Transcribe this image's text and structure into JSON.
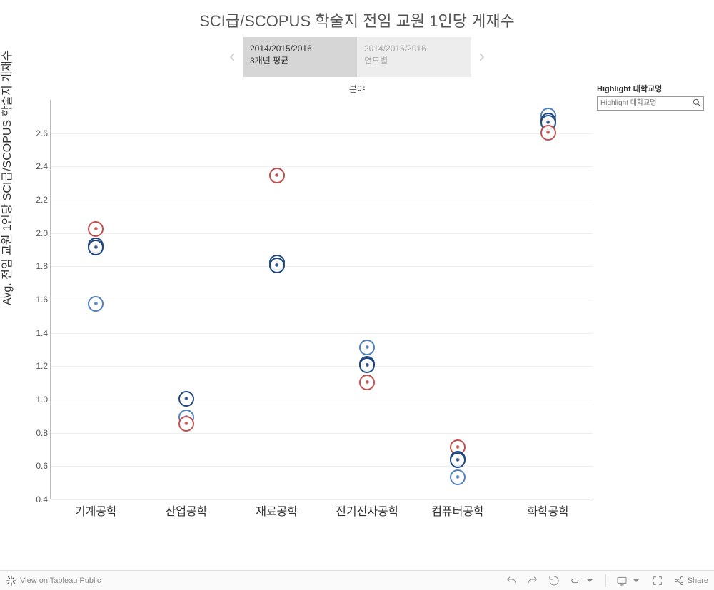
{
  "title": "SCI급/SCOPUS  학술지 전임 교원 1인당 게재수",
  "tabs": {
    "prev_icon": "chevron-left",
    "next_icon": "chevron-right",
    "items": [
      {
        "line1": "2014/2015/2016",
        "line2": "3개년 평균",
        "active": true
      },
      {
        "line1": "2014/2015/2016",
        "line2": "연도별",
        "active": false
      }
    ]
  },
  "highlight": {
    "label": "Highlight 대학교명",
    "placeholder": "Highlight 대학교명"
  },
  "chart": {
    "type": "scatter-categorical",
    "category_axis_label": "분야",
    "y_axis_label": "Avg. 전임 교원 1인당 SCI급/SCOPUS 학술지 게재수",
    "ylim": [
      0.4,
      2.8
    ],
    "yticks": [
      0.4,
      0.6,
      0.8,
      1.0,
      1.2,
      1.4,
      1.6,
      1.8,
      2.0,
      2.2,
      2.4,
      2.6
    ],
    "categories": [
      "기계공학",
      "산업공학",
      "재료공학",
      "전기전자공학",
      "컴퓨터공학",
      "화학공학"
    ],
    "marker_style": {
      "size": 22,
      "border_width": 2,
      "shape": "circle"
    },
    "series_colors": {
      "A": "#c0504d",
      "B": "#1f497d",
      "C": "#4f81bd"
    },
    "points": [
      {
        "category": 0,
        "value": 2.02,
        "series": "A"
      },
      {
        "category": 0,
        "value": 1.92,
        "series": "B"
      },
      {
        "category": 0,
        "value": 1.91,
        "series": "B"
      },
      {
        "category": 0,
        "value": 1.57,
        "series": "C"
      },
      {
        "category": 1,
        "value": 1.0,
        "series": "B"
      },
      {
        "category": 1,
        "value": 0.89,
        "series": "C"
      },
      {
        "category": 1,
        "value": 0.85,
        "series": "A"
      },
      {
        "category": 2,
        "value": 2.34,
        "series": "A"
      },
      {
        "category": 2,
        "value": 1.82,
        "series": "B"
      },
      {
        "category": 2,
        "value": 1.8,
        "series": "B"
      },
      {
        "category": 3,
        "value": 1.31,
        "series": "C"
      },
      {
        "category": 3,
        "value": 1.21,
        "series": "B"
      },
      {
        "category": 3,
        "value": 1.2,
        "series": "B"
      },
      {
        "category": 3,
        "value": 1.1,
        "series": "A"
      },
      {
        "category": 4,
        "value": 0.71,
        "series": "A"
      },
      {
        "category": 4,
        "value": 0.64,
        "series": "B"
      },
      {
        "category": 4,
        "value": 0.63,
        "series": "B"
      },
      {
        "category": 4,
        "value": 0.53,
        "series": "C"
      },
      {
        "category": 5,
        "value": 2.7,
        "series": "C"
      },
      {
        "category": 5,
        "value": 2.67,
        "series": "B"
      },
      {
        "category": 5,
        "value": 2.66,
        "series": "B"
      },
      {
        "category": 5,
        "value": 2.6,
        "series": "A"
      }
    ],
    "background_color": "#ffffff",
    "grid_color": "#eeeeee",
    "axis_color": "#bbbbbb",
    "tick_fontsize": 12,
    "xlabel_fontsize": 16,
    "title_fontsize": 22
  },
  "toolbar": {
    "view_label": "View on Tableau Public",
    "share_label": "Share"
  }
}
